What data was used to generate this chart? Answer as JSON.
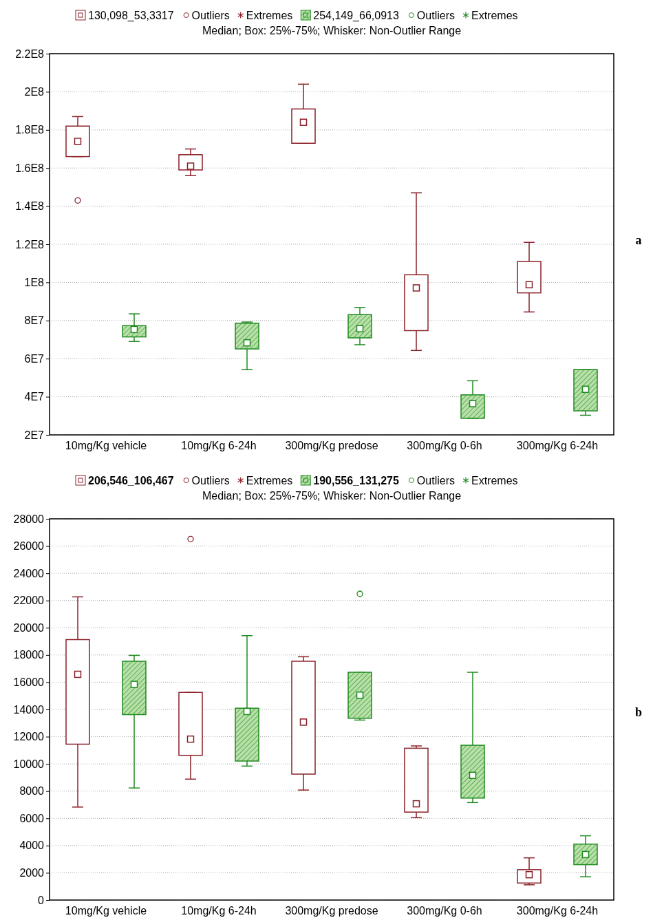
{
  "chart_data": [
    {
      "type": "box",
      "subtitle": "Median; Box: 25%-75%; Whisker: Non-Outlier Range",
      "categories": [
        "10mg/Kg vehicle",
        "10mg/Kg 6-24h",
        "300mg/Kg predose",
        "300mg/Kg 0-6h",
        "300mg/Kg 6-24h"
      ],
      "series": [
        {
          "name": "130,098_53,3317",
          "color": "#8b2027",
          "boxes": [
            {
              "low": 166000000,
              "q1": 166000000,
              "median": 174000000,
              "q3": 182000000,
              "high": 187000000,
              "outliers": [
                143000000
              ]
            },
            {
              "low": 156000000,
              "q1": 159000000,
              "median": 161000000,
              "q3": 167000000,
              "high": 170000000
            },
            {
              "low": 173000000,
              "q1": 173000000,
              "median": 184000000,
              "q3": 191000000,
              "high": 204000000
            },
            {
              "low": 64300000,
              "q1": 74700000,
              "median": 97100000,
              "q3": 104000000,
              "high": 147000000
            },
            {
              "low": 84500000,
              "q1": 94500000,
              "median": 98800000,
              "q3": 111000000,
              "high": 121000000
            }
          ]
        },
        {
          "name": "254,149_66,0913",
          "color": "#1e8a1e",
          "boxes": [
            {
              "low": 69000000,
              "q1": 71400000,
              "median": 75300000,
              "q3": 77300000,
              "high": 83500000
            },
            {
              "low": 54200000,
              "q1": 65100000,
              "median": 68300000,
              "q3": 78600000,
              "high": 79200000
            },
            {
              "low": 67300000,
              "q1": 70900000,
              "median": 75700000,
              "q3": 83100000,
              "high": 86800000
            },
            {
              "low": 28700000,
              "q1": 28700000,
              "median": 36400000,
              "q3": 41000000,
              "high": 48400000
            },
            {
              "low": 30300000,
              "q1": 32600000,
              "median": 43900000,
              "q3": 54300000,
              "high": 54300000
            }
          ]
        }
      ],
      "ylim": [
        20000000,
        220000000
      ],
      "yticks": [
        {
          "value": 20000000,
          "label": "2E7"
        },
        {
          "value": 40000000,
          "label": "4E7"
        },
        {
          "value": 60000000,
          "label": "6E7"
        },
        {
          "value": 80000000,
          "label": "8E7"
        },
        {
          "value": 100000000,
          "label": "1E8"
        },
        {
          "value": 120000000,
          "label": "1.2E8"
        },
        {
          "value": 140000000,
          "label": "1.4E8"
        },
        {
          "value": 160000000,
          "label": "1.6E8"
        },
        {
          "value": 180000000,
          "label": "1.8E8"
        },
        {
          "value": 200000000,
          "label": "2E8"
        },
        {
          "value": 220000000,
          "label": "2.2E8"
        }
      ],
      "grid": "y",
      "legend": "top",
      "annotations": [
        "Outliers",
        "Extremes",
        "Outliers",
        "Extremes",
        "a"
      ]
    },
    {
      "type": "box",
      "subtitle": "Median; Box: 25%-75%; Whisker: Non-Outlier Range",
      "categories": [
        "10mg/Kg vehicle",
        "10mg/Kg 6-24h",
        "300mg/Kg predose",
        "300mg/Kg 0-6h",
        "300mg/Kg 6-24h"
      ],
      "series": [
        {
          "name": "206,546_106,467",
          "color": "#8b2027",
          "boxes": [
            {
              "low": 6830,
              "q1": 11450,
              "median": 16580,
              "q3": 19130,
              "high": 22270
            },
            {
              "low": 8880,
              "q1": 10630,
              "median": 11820,
              "q3": 15250,
              "high": 15250,
              "outliers": [
                26520
              ]
            },
            {
              "low": 8080,
              "q1": 9250,
              "median": 13070,
              "q3": 17540,
              "high": 17870
            },
            {
              "low": 6050,
              "q1": 6460,
              "median": 7070,
              "q3": 11150,
              "high": 11320
            },
            {
              "low": 1120,
              "q1": 1250,
              "median": 1860,
              "q3": 2230,
              "high": 3100
            }
          ]
        },
        {
          "name": "190,556_131,275",
          "color": "#1e8a1e",
          "boxes": [
            {
              "low": 8230,
              "q1": 13620,
              "median": 15840,
              "q3": 17540,
              "high": 17970
            },
            {
              "low": 9840,
              "q1": 10210,
              "median": 13850,
              "q3": 14090,
              "high": 19420
            },
            {
              "low": 13220,
              "q1": 13350,
              "median": 15050,
              "q3": 16730,
              "high": 16730,
              "outliers": [
                22490
              ]
            },
            {
              "low": 7160,
              "q1": 7490,
              "median": 9160,
              "q3": 11370,
              "high": 16730
            },
            {
              "low": 1710,
              "q1": 2600,
              "median": 3340,
              "q3": 4110,
              "high": 4720
            }
          ]
        }
      ],
      "ylim": [
        0,
        28000
      ],
      "yticks": [
        0,
        2000,
        4000,
        6000,
        8000,
        10000,
        12000,
        14000,
        16000,
        18000,
        20000,
        22000,
        24000,
        26000,
        28000
      ],
      "grid": "y",
      "legend": "top",
      "annotations": [
        "Outliers",
        "Extremes",
        "Outliers",
        "Extremes",
        "b"
      ]
    }
  ]
}
